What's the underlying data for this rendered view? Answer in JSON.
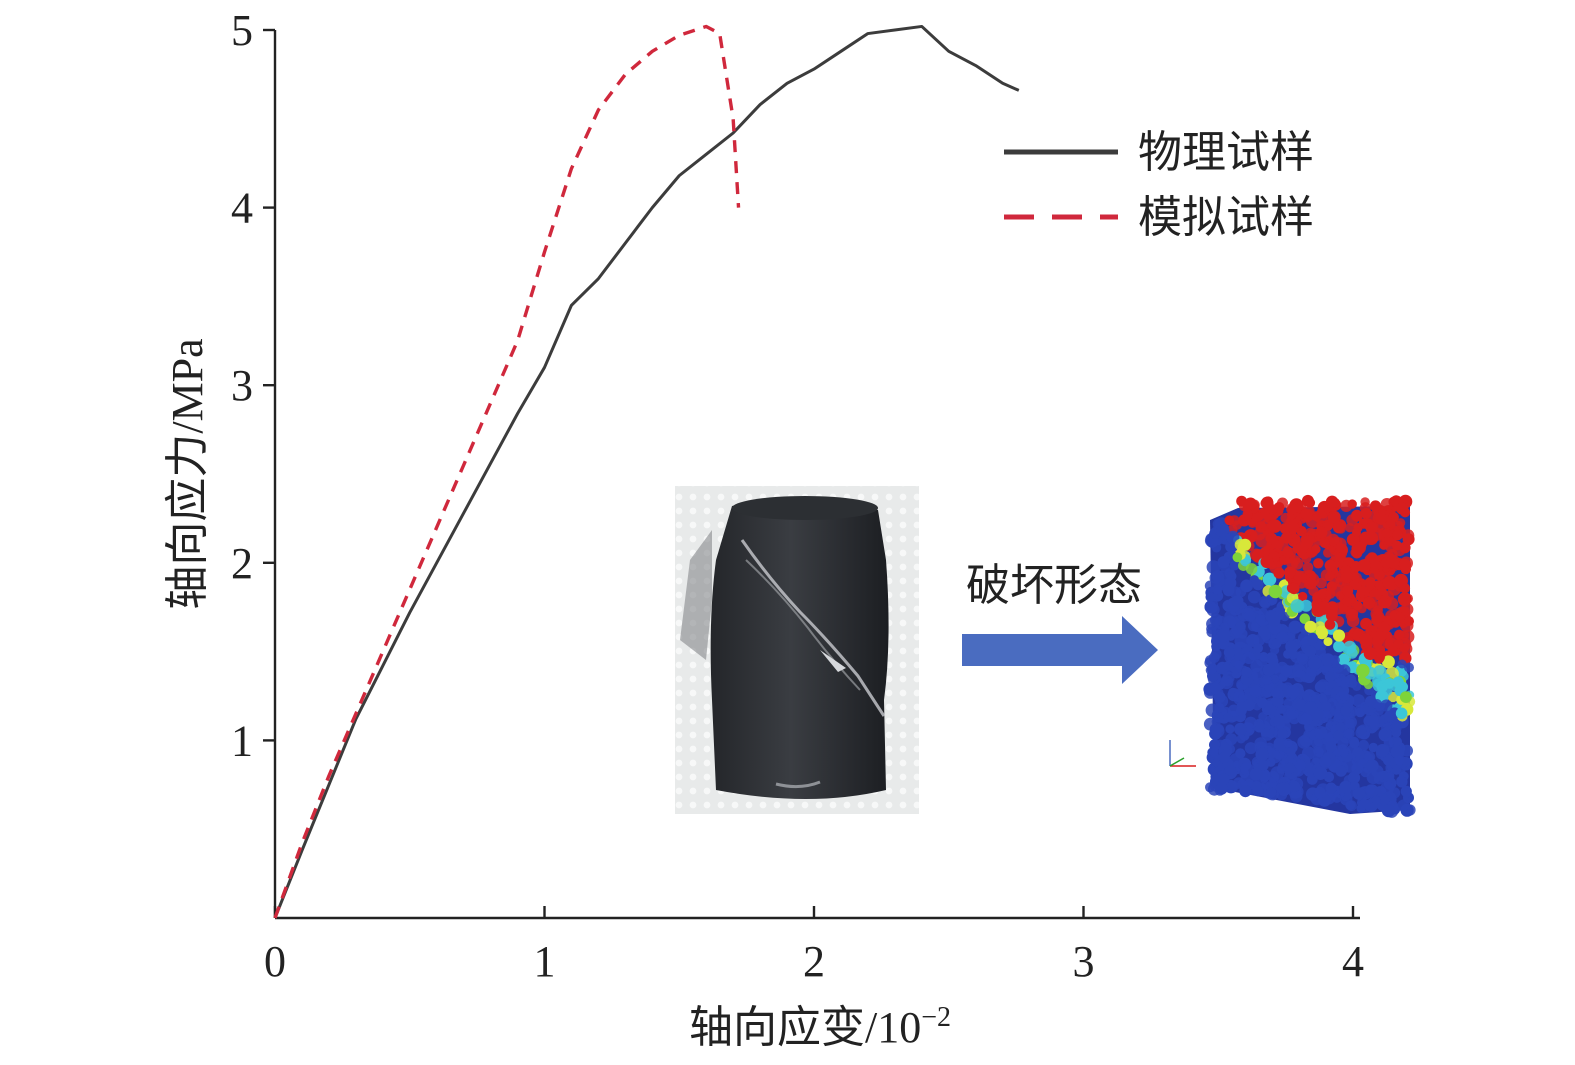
{
  "chart_data": {
    "type": "line",
    "xlabel": "轴向应变/10",
    "xlabel_exponent": "−2",
    "ylabel": "轴向应力/MPa",
    "xlim": [
      0,
      4
    ],
    "ylim": [
      0,
      5
    ],
    "x_ticks": [
      "0",
      "1",
      "2",
      "3",
      "4"
    ],
    "y_ticks": [
      "1",
      "2",
      "3",
      "4",
      "5"
    ],
    "grid": false,
    "legend_position": "top-right",
    "series": [
      {
        "name": "物理试样",
        "color": "#3c3c3c",
        "dash": "solid",
        "x": [
          0,
          0.1,
          0.2,
          0.3,
          0.4,
          0.5,
          0.6,
          0.7,
          0.8,
          0.9,
          1.0,
          1.1,
          1.2,
          1.3,
          1.4,
          1.5,
          1.6,
          1.7,
          1.8,
          1.9,
          2.0,
          2.1,
          2.2,
          2.3,
          2.4,
          2.5,
          2.6,
          2.7,
          2.76
        ],
        "y": [
          0,
          0.38,
          0.75,
          1.12,
          1.42,
          1.72,
          2.0,
          2.28,
          2.56,
          2.84,
          3.1,
          3.45,
          3.6,
          3.8,
          4.0,
          4.18,
          4.3,
          4.42,
          4.58,
          4.7,
          4.78,
          4.88,
          4.98,
          5.0,
          5.02,
          4.88,
          4.8,
          4.7,
          4.66
        ]
      },
      {
        "name": "模拟试样",
        "color": "#d0283c",
        "dash": "dashed",
        "x": [
          0,
          0.1,
          0.2,
          0.3,
          0.4,
          0.5,
          0.6,
          0.7,
          0.8,
          0.9,
          1.0,
          1.1,
          1.2,
          1.3,
          1.4,
          1.5,
          1.6,
          1.65,
          1.7,
          1.72
        ],
        "y": [
          0,
          0.42,
          0.8,
          1.15,
          1.5,
          1.85,
          2.2,
          2.55,
          2.9,
          3.25,
          3.75,
          4.22,
          4.55,
          4.75,
          4.88,
          4.97,
          5.02,
          4.98,
          4.5,
          4.0
        ]
      }
    ],
    "inset": {
      "arrow_label": "破坏形态"
    },
    "colors": {
      "simulated_intact": "#2a44b8",
      "simulated_failed": "#d81e1e",
      "crack_green": "#7ed43a",
      "crack_cyan": "#3cc6d8",
      "crack_yellow": "#d8e83a",
      "arrow_fill": "#4a6cc0",
      "rock_sample": "#2e3034"
    }
  }
}
